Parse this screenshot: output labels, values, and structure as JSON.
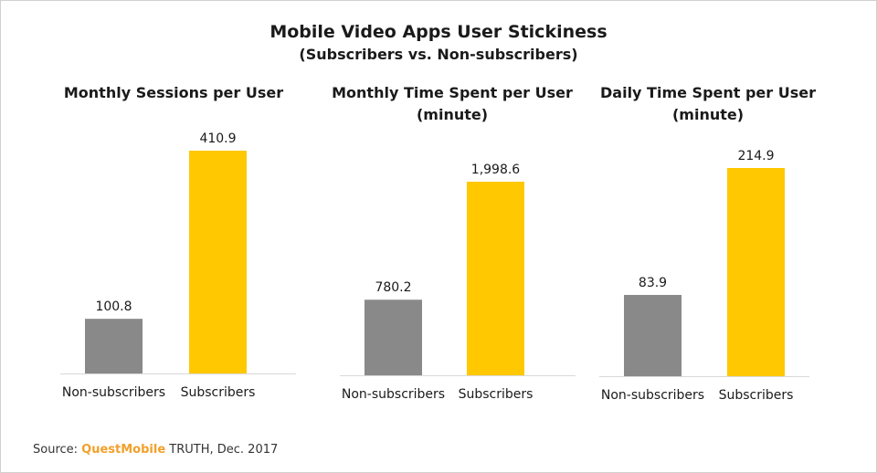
{
  "title": "Mobile Video Apps User Stickiness",
  "subtitle": "(Subscribers vs. Non-subscribers)",
  "colors": {
    "non_subscribers": "#898989",
    "subscribers": "#FFC800",
    "brand": "#F2A02A"
  },
  "source": {
    "prefix": "Source: ",
    "brand": "QuestMobile",
    "suffix": " TRUTH, Dec. 2017"
  },
  "chart_data": [
    {
      "type": "bar",
      "title_lines": [
        "Monthly Sessions per User"
      ],
      "categories": [
        "Non-subscribers",
        "Subscribers"
      ],
      "values": [
        100.8,
        410.9
      ],
      "labels": [
        "100.8",
        "410.9"
      ]
    },
    {
      "type": "bar",
      "title_lines": [
        "Monthly Time Spent per User",
        "(minute)"
      ],
      "categories": [
        "Non-subscribers",
        "Subscribers"
      ],
      "values": [
        780.2,
        1998.6
      ],
      "labels": [
        "780.2",
        "1,998.6"
      ]
    },
    {
      "type": "bar",
      "title_lines": [
        "Daily Time Spent per User",
        "(minute)"
      ],
      "categories": [
        "Non-subscribers",
        "Subscribers"
      ],
      "values": [
        83.9,
        214.9
      ],
      "labels": [
        "83.9",
        "214.9"
      ]
    }
  ]
}
